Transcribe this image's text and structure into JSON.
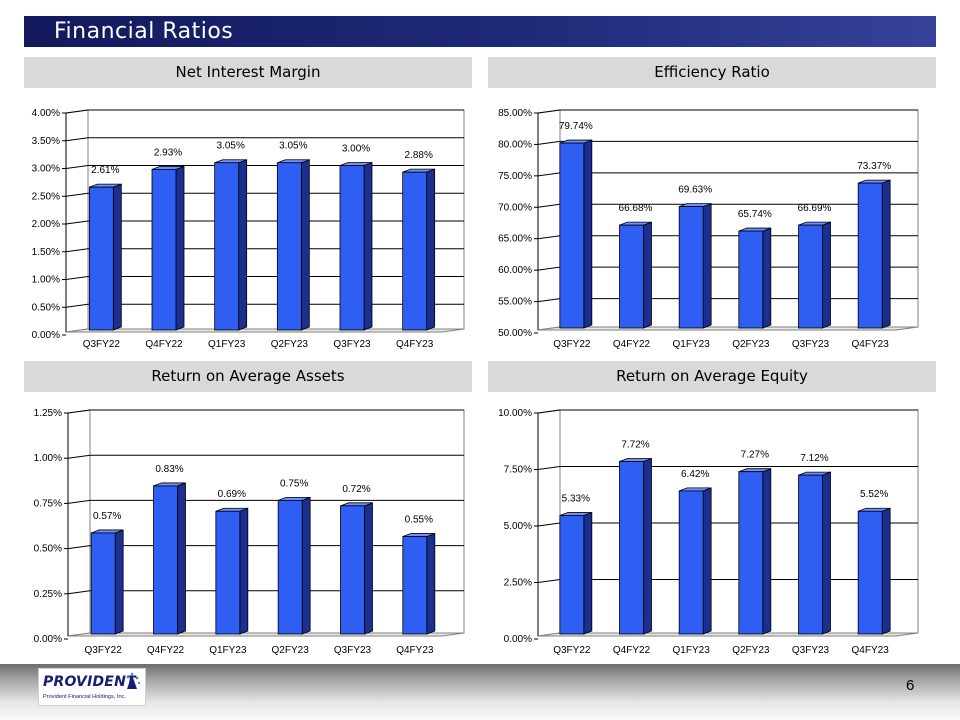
{
  "page": {
    "title": "Financial Ratios",
    "page_number": "6",
    "logo": {
      "name": "PROVIDENT",
      "subtitle": "Provident Financial Holdings, Inc."
    }
  },
  "colors": {
    "bar_front": "#2f5ef2",
    "bar_side": "#1a2f8f",
    "bar_top": "#6f90ff",
    "title_bar": "#1f2a7a",
    "panel_header": "#d9d9d9"
  },
  "chart_data": [
    {
      "type": "bar",
      "title": "Net Interest Margin",
      "categories": [
        "Q3FY22",
        "Q4FY22",
        "Q1FY23",
        "Q2FY23",
        "Q3FY23",
        "Q4FY23"
      ],
      "values": [
        2.61,
        2.93,
        3.05,
        3.05,
        3.0,
        2.88
      ],
      "labels": [
        "2.61%",
        "2.93%",
        "3.05%",
        "3.05%",
        "3.00%",
        "2.88%"
      ],
      "yticks": [
        "0.00%",
        "0.50%",
        "1.00%",
        "1.50%",
        "2.00%",
        "2.50%",
        "3.00%",
        "3.50%",
        "4.00%"
      ],
      "ylim": [
        0,
        4
      ],
      "grid": true
    },
    {
      "type": "bar",
      "title": "Efficiency Ratio",
      "categories": [
        "Q3FY22",
        "Q4FY22",
        "Q1FY23",
        "Q2FY23",
        "Q3FY23",
        "Q4FY23"
      ],
      "values": [
        79.74,
        66.68,
        69.63,
        65.74,
        66.69,
        73.37
      ],
      "labels": [
        "79.74%",
        "66.68%",
        "69.63%",
        "65.74%",
        "66.69%",
        "73.37%"
      ],
      "yticks": [
        "50.00%",
        "55.00%",
        "60.00%",
        "65.00%",
        "70.00%",
        "75.00%",
        "80.00%",
        "85.00%"
      ],
      "ylim": [
        50,
        85
      ],
      "grid": true
    },
    {
      "type": "bar",
      "title": "Return on Average Assets",
      "categories": [
        "Q3FY22",
        "Q4FY22",
        "Q1FY23",
        "Q2FY23",
        "Q3FY23",
        "Q4FY23"
      ],
      "values": [
        0.57,
        0.83,
        0.69,
        0.75,
        0.72,
        0.55
      ],
      "labels": [
        "0.57%",
        "0.83%",
        "0.69%",
        "0.75%",
        "0.72%",
        "0.55%"
      ],
      "yticks": [
        "0.00%",
        "0.25%",
        "0.50%",
        "0.75%",
        "1.00%",
        "1.25%"
      ],
      "ylim": [
        0,
        1.25
      ],
      "grid": true
    },
    {
      "type": "bar",
      "title": "Return on Average Equity",
      "categories": [
        "Q3FY22",
        "Q4FY22",
        "Q1FY23",
        "Q2FY23",
        "Q3FY23",
        "Q4FY23"
      ],
      "values": [
        5.33,
        7.72,
        6.42,
        7.27,
        7.12,
        5.52
      ],
      "labels": [
        "5.33%",
        "7.72%",
        "6.42%",
        "7.27%",
        "7.12%",
        "5.52%"
      ],
      "yticks": [
        "0.00%",
        "2.50%",
        "5.00%",
        "7.50%",
        "10.00%"
      ],
      "ylim": [
        0,
        10
      ],
      "grid": true
    }
  ]
}
